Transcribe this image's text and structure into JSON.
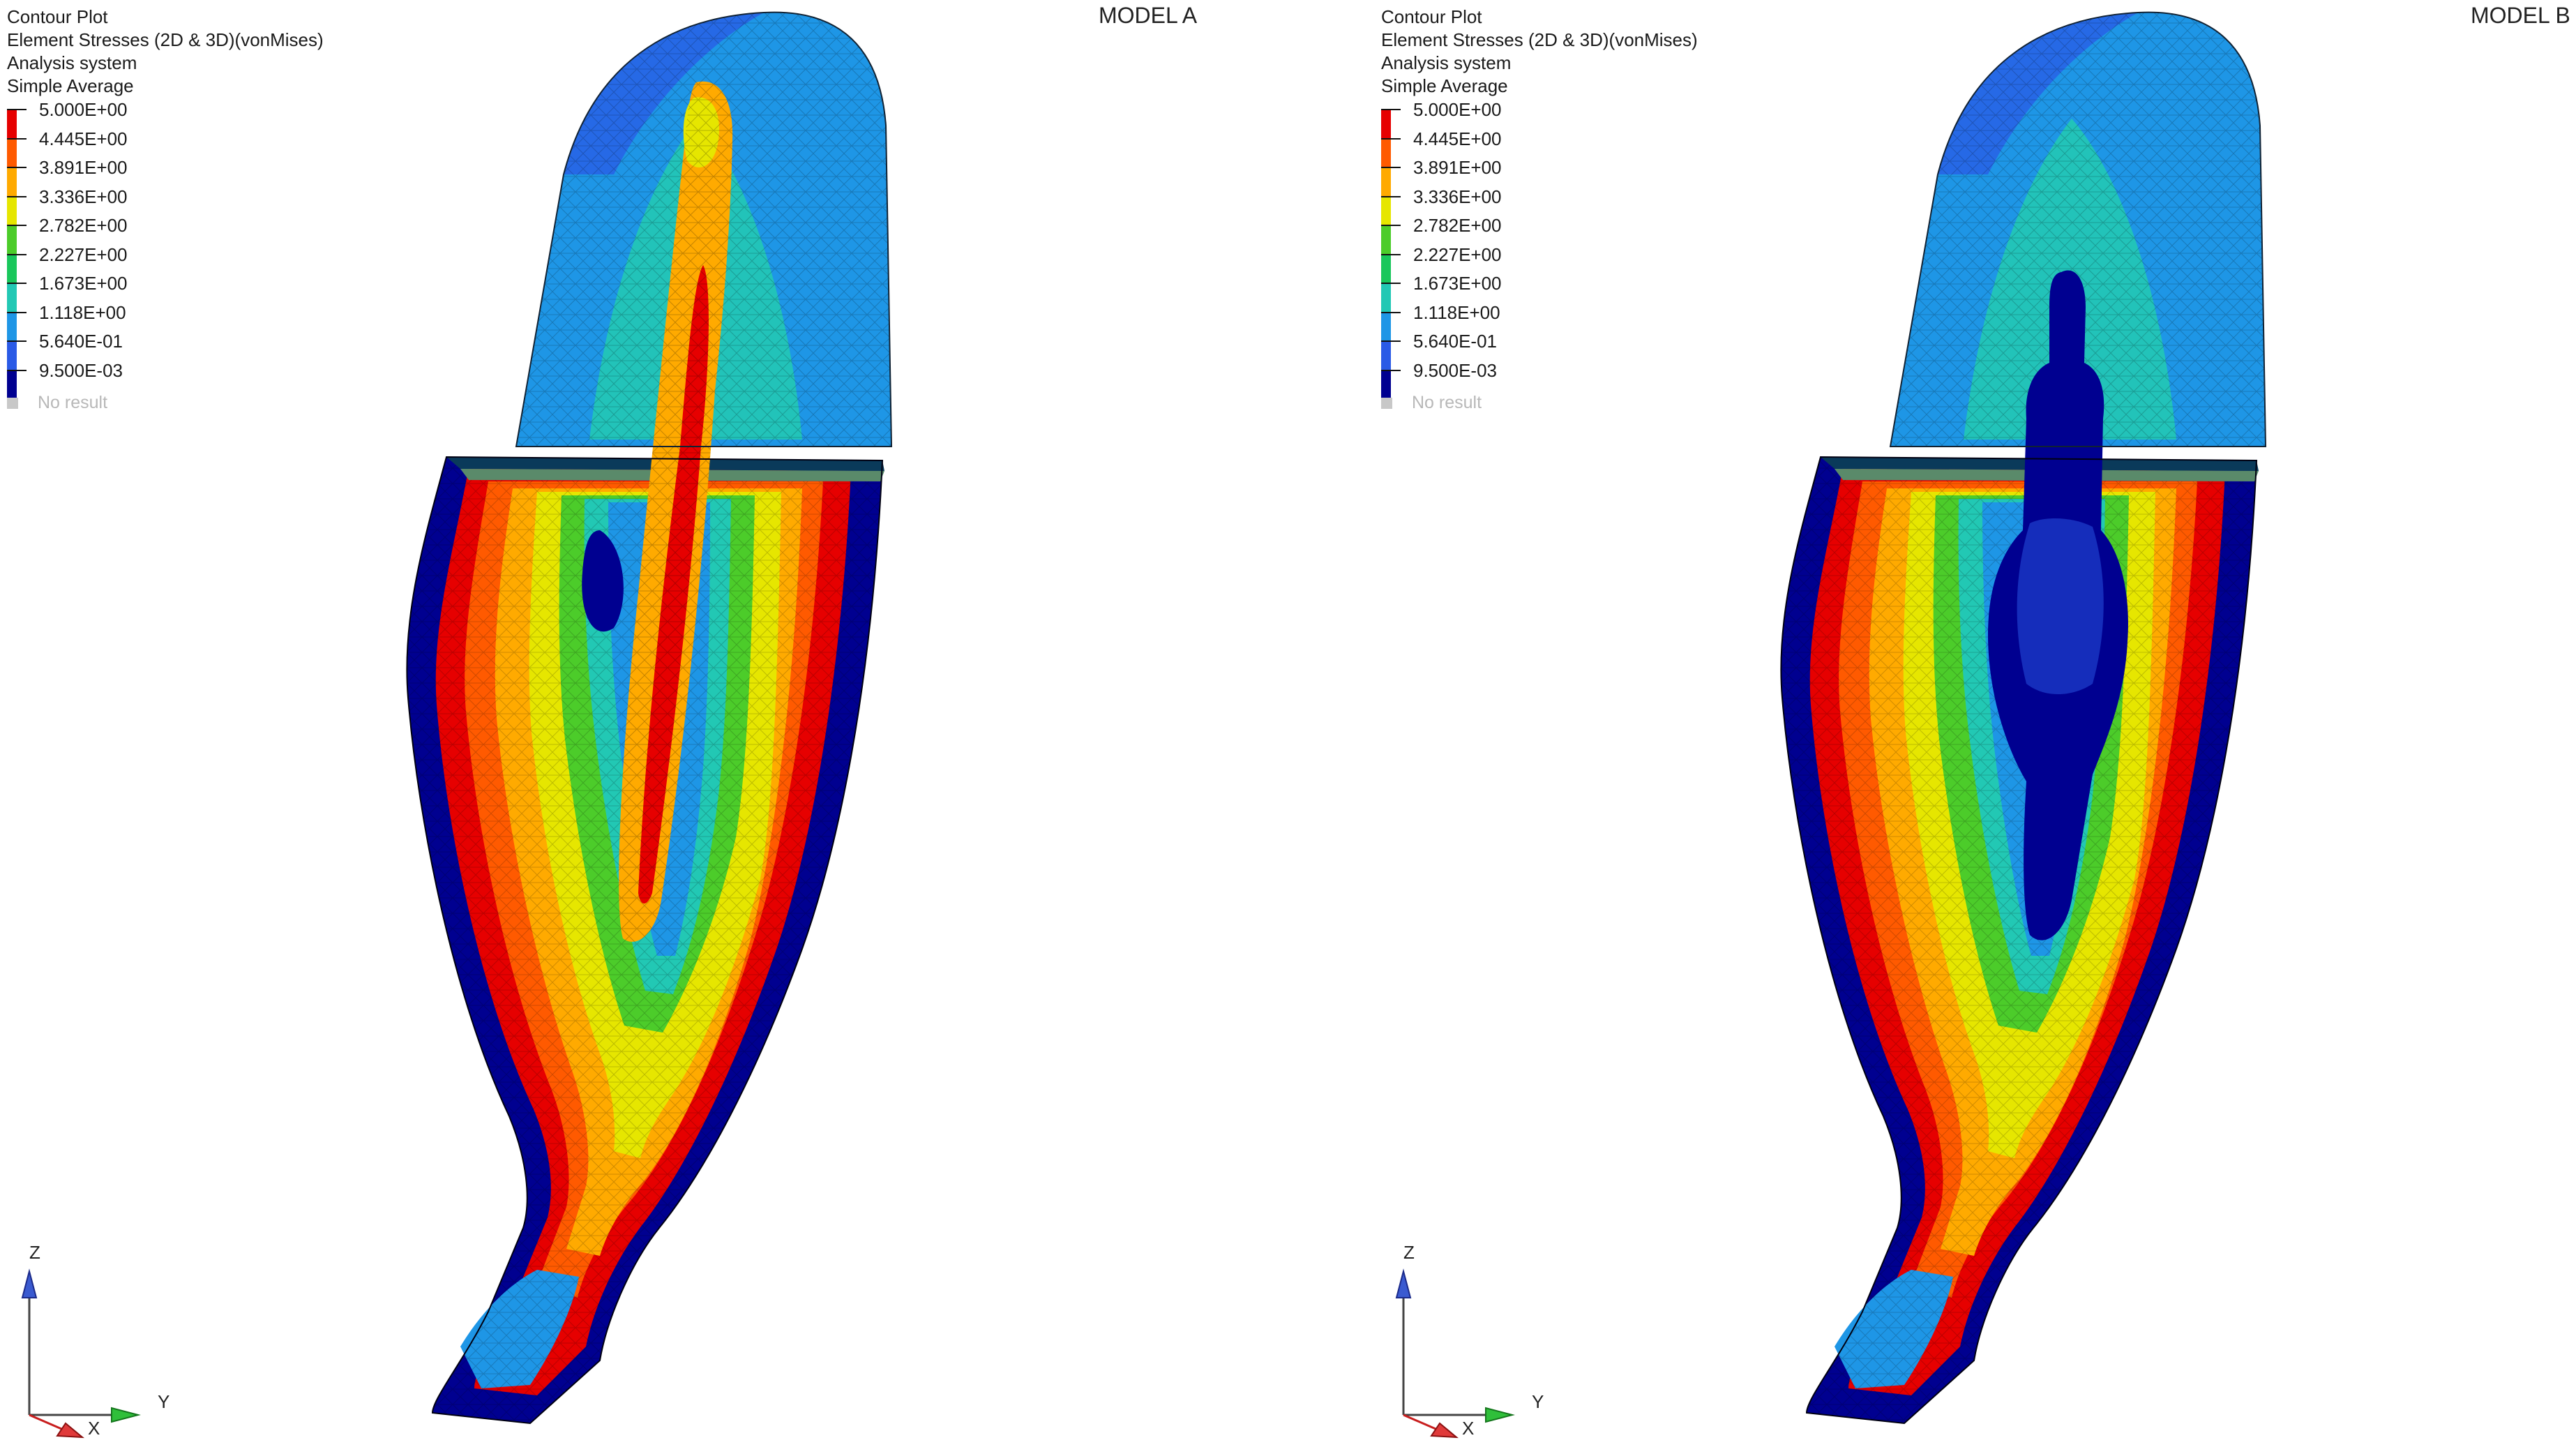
{
  "legend": {
    "header": [
      "Contour Plot",
      "Element Stresses (2D & 3D)(vonMises)",
      "Analysis system",
      "Simple Average"
    ],
    "values": [
      "5.000E+00",
      "4.445E+00",
      "3.891E+00",
      "3.336E+00",
      "2.782E+00",
      "2.227E+00",
      "1.673E+00",
      "1.118E+00",
      "5.640E-01",
      "9.500E-03"
    ],
    "colors": [
      "#e60000",
      "#ff5a00",
      "#ffaa00",
      "#e6e600",
      "#4ccc2a",
      "#19c75b",
      "#22c8b4",
      "#1e96e6",
      "#2a5ae6",
      "#000090"
    ],
    "no_result": "No result"
  },
  "models": [
    {
      "title": "MODEL A",
      "shell": "bar"
    },
    {
      "title": "MODEL B",
      "shell": "hollow"
    }
  ],
  "axes": {
    "z": "Z",
    "y": "Y",
    "x": "X"
  }
}
